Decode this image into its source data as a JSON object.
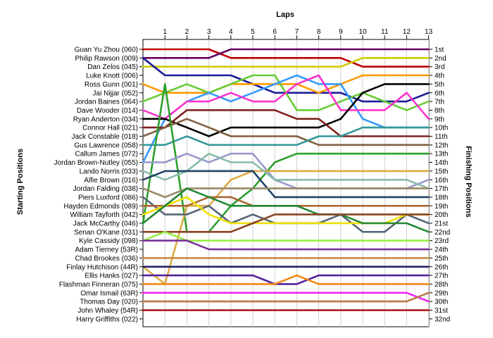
{
  "chart_data": {
    "type": "line",
    "title": "",
    "top_axis_label": "Laps",
    "left_axis_label": "Starting Positions",
    "right_axis_label": "Finishing Positions",
    "x": [
      0,
      1,
      2,
      3,
      4,
      5,
      6,
      7,
      8,
      9,
      10,
      11,
      12,
      13
    ],
    "x_tick_labels": [
      "1",
      "2",
      "3",
      "4",
      "5",
      "6",
      "7",
      "8",
      "9",
      "10",
      "11",
      "12",
      "13"
    ],
    "y_inverted": true,
    "ylim": [
      1,
      32
    ],
    "starting_grid": [
      "Guan Yu Zhou (060)",
      "Philip Rawson (009)",
      "Dan Zelos (045)",
      "Luke Knott (006)",
      "Ross Gunn (001)",
      "Jai Nijjar (052)",
      "Jordan Baines (064)",
      "Dave Wooder (014)",
      "Ryan Anderton (034)",
      "Connor Hall (021)",
      "Jack Constable (018)",
      "Gus Lawrence (058)",
      "Callum James (072)",
      "Jordan Brown-Nutley (055)",
      "Lando Norris (033)",
      "Alfie Brown (016)",
      "Jordan Falding (038)",
      "Piers Luxford (086)",
      "Hayden Edmonds (089)",
      "William Tayforth (042)",
      "Jack McCarthy (046)",
      "Senan O'Kane (031)",
      "Kyle Cassidy (098)",
      "Adam Tierney (53R)",
      "Chad Brookes (036)",
      "Finlay Hutchison (44R)",
      "Ellis Hanks (027)",
      "Flashman Finneran (075)",
      "Omar Ismail (63R)",
      "Thomas Day (020)",
      "John Whaley (54R)",
      "Harry Griffiths (022)"
    ],
    "finishing_labels": [
      "1st",
      "2nd",
      "3rd",
      "4th",
      "5th",
      "6th",
      "7th",
      "8th",
      "9th",
      "10th",
      "11th",
      "12th",
      "13th",
      "14th",
      "15th",
      "16th",
      "17th",
      "18th",
      "19th",
      "20th",
      "21st",
      "22nd",
      "23rd",
      "24th",
      "25th",
      "26th",
      "27th",
      "28th",
      "29th",
      "30th",
      "31st",
      "32nd"
    ],
    "series": [
      {
        "color": "#c00000",
        "values": [
          1,
          1,
          1,
          1,
          2,
          2,
          2,
          2,
          2,
          2,
          3,
          3,
          3,
          3
        ]
      },
      {
        "color": "#660066",
        "values": [
          2,
          2,
          2,
          2,
          1,
          1,
          1,
          1,
          1,
          1,
          1,
          1,
          1,
          1
        ]
      },
      {
        "color": "#cccc00",
        "values": [
          3,
          3,
          3,
          3,
          3,
          3,
          3,
          3,
          3,
          3,
          2,
          2,
          2,
          2
        ]
      },
      {
        "color": "#1a1a99",
        "values": [
          2,
          4,
          4,
          4,
          4,
          5,
          6,
          6,
          6,
          6,
          7,
          7,
          7,
          6
        ]
      },
      {
        "color": "#ff9900",
        "values": [
          5,
          6,
          6,
          6,
          5,
          5,
          5,
          5,
          6,
          5,
          4,
          4,
          4,
          4
        ]
      },
      {
        "color": "#66cc33",
        "values": [
          7,
          6,
          5,
          6,
          5,
          4,
          4,
          8,
          8,
          7,
          6,
          7,
          8,
          7
        ]
      },
      {
        "color": "#3399ff",
        "values": [
          14,
          9,
          7,
          6,
          7,
          6,
          5,
          4,
          5,
          5,
          9,
          10,
          10,
          10
        ]
      },
      {
        "color": "#ff33cc",
        "values": [
          8,
          9,
          7,
          7,
          6,
          7,
          7,
          5,
          4,
          8,
          8,
          8,
          6,
          9
        ]
      },
      {
        "color": "#000000",
        "values": [
          9,
          9,
          10,
          11,
          10,
          10,
          10,
          10,
          10,
          9,
          6,
          5,
          5,
          5
        ]
      },
      {
        "color": "#802020",
        "values": [
          10,
          10,
          8,
          8,
          8,
          8,
          8,
          9,
          9,
          11,
          11,
          11,
          11,
          11
        ]
      },
      {
        "color": "#806040",
        "values": [
          11,
          10,
          9,
          10,
          11,
          11,
          11,
          11,
          12,
          12,
          12,
          12,
          12,
          12
        ]
      },
      {
        "color": "#339999",
        "values": [
          12,
          12,
          11,
          12,
          12,
          12,
          12,
          12,
          11,
          11,
          10,
          10,
          10,
          10
        ]
      },
      {
        "color": "#2ca02c",
        "values": [
          21,
          5,
          22,
          22,
          19,
          17,
          14,
          13,
          13,
          13,
          13,
          13,
          13,
          13
        ]
      },
      {
        "color": "#9999cc",
        "values": [
          14,
          14,
          13,
          14,
          13,
          13,
          16,
          17,
          17,
          17,
          17,
          17,
          17,
          16
        ]
      },
      {
        "color": "#ddaa44",
        "values": [
          26,
          28,
          19,
          19,
          16,
          15,
          15,
          15,
          15,
          15,
          15,
          15,
          15,
          15
        ]
      },
      {
        "color": "#88bbaa",
        "values": [
          15,
          16,
          15,
          13,
          14,
          14,
          16,
          16,
          16,
          16,
          16,
          16,
          16,
          17
        ]
      },
      {
        "color": "#224466",
        "values": [
          16,
          15,
          15,
          15,
          15,
          15,
          18,
          18,
          18,
          18,
          18,
          18,
          18,
          18
        ]
      },
      {
        "color": "#998866",
        "values": [
          17,
          18,
          17,
          17,
          17,
          17,
          17,
          17,
          17,
          17,
          17,
          17,
          17,
          17
        ]
      },
      {
        "color": "#556677",
        "values": [
          18,
          20,
          20,
          19,
          21,
          20,
          21,
          21,
          21,
          20,
          22,
          22,
          20,
          21
        ]
      },
      {
        "color": "#aa6633",
        "values": [
          19,
          19,
          19,
          18,
          18,
          19,
          19,
          19,
          19,
          19,
          19,
          19,
          19,
          19
        ]
      },
      {
        "color": "#f0e000",
        "values": [
          20,
          19,
          18,
          20,
          21,
          21,
          21,
          21,
          21,
          21,
          21,
          21,
          20,
          20
        ]
      },
      {
        "color": "#228833",
        "values": [
          21,
          19,
          17,
          18,
          19,
          19,
          19,
          19,
          20,
          20,
          21,
          21,
          21,
          22
        ]
      },
      {
        "color": "#884422",
        "values": [
          22,
          22,
          22,
          22,
          22,
          21,
          20,
          20,
          20,
          20,
          20,
          20,
          20,
          20
        ]
      },
      {
        "color": "#99ee44",
        "values": [
          23,
          22,
          23,
          23,
          23,
          23,
          23,
          23,
          23,
          23,
          23,
          23,
          23,
          23
        ]
      },
      {
        "color": "#773399",
        "values": [
          23,
          23,
          23,
          24,
          24,
          24,
          24,
          24,
          24,
          24,
          24,
          24,
          24,
          24
        ]
      },
      {
        "color": "#cc8844",
        "values": [
          25,
          25,
          25,
          25,
          25,
          25,
          25,
          25,
          25,
          25,
          25,
          25,
          25,
          25
        ]
      },
      {
        "color": "#222266",
        "values": [
          26,
          26,
          26,
          26,
          26,
          26,
          26,
          26,
          26,
          26,
          26,
          26,
          26,
          26
        ]
      },
      {
        "color": "#552299",
        "values": [
          27,
          27,
          27,
          27,
          27,
          27,
          28,
          28,
          27,
          27,
          27,
          27,
          27,
          27
        ]
      },
      {
        "color": "#ee8811",
        "values": [
          28,
          28,
          28,
          28,
          28,
          28,
          28,
          27,
          28,
          28,
          28,
          28,
          28,
          28
        ]
      },
      {
        "color": "#ee22ee",
        "values": [
          29,
          29,
          29,
          29,
          29,
          29,
          29,
          29,
          29,
          29,
          29,
          29,
          29,
          30
        ]
      },
      {
        "color": "#bb7744",
        "values": [
          30,
          30,
          30,
          30,
          30,
          30,
          30,
          30,
          30,
          30,
          30,
          30,
          30,
          29
        ]
      },
      {
        "color": "#aa1111",
        "values": [
          31,
          31,
          31,
          31,
          31,
          31,
          31,
          31,
          31,
          31,
          31,
          31,
          31,
          31
        ]
      }
    ]
  }
}
